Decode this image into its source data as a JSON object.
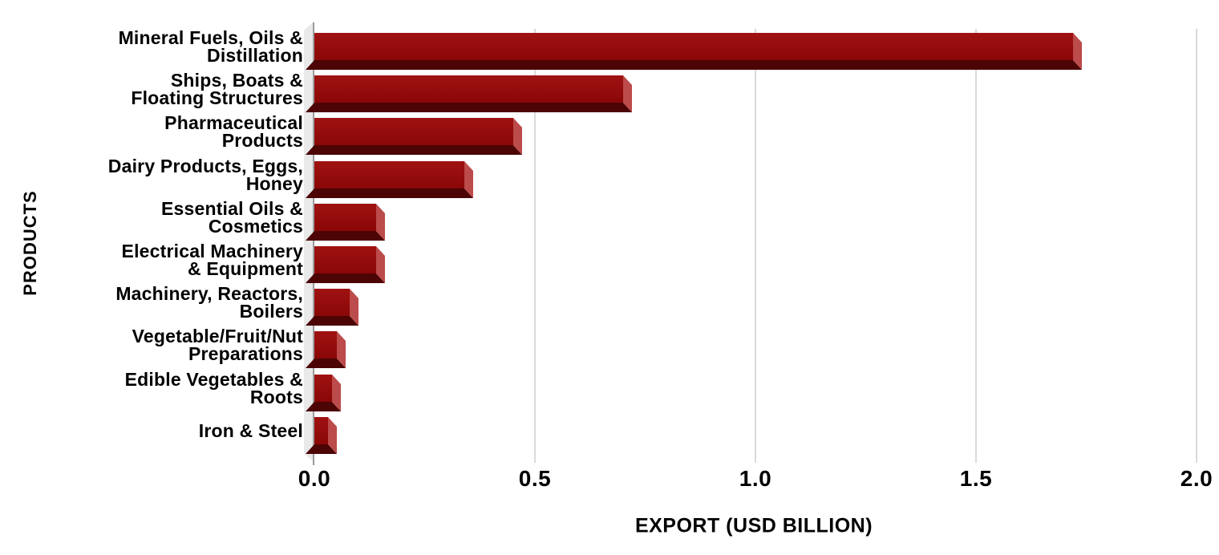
{
  "chart_data": {
    "type": "bar",
    "orientation": "horizontal",
    "xlabel": "EXPORT (USD BILLION)",
    "ylabel": "PRODUCTS",
    "xlim": [
      0,
      2.0
    ],
    "grid": "vertical",
    "legend": "none",
    "x_ticks": [
      {
        "value": 0,
        "label": "0.0"
      },
      {
        "value": 0.5,
        "label": "0.5"
      },
      {
        "value": 1.0,
        "label": "1.0"
      },
      {
        "value": 1.5,
        "label": "1.5"
      },
      {
        "value": 2.0,
        "label": "2.0"
      }
    ],
    "categories": [
      "Mineral Fuels, Oils &\nDistillation",
      "Ships, Boats &\nFloating Structures",
      "Pharmaceutical\nProducts",
      "Dairy Products, Eggs,\nHoney",
      "Essential Oils &\nCosmetics",
      "Electrical Machinery\n& Equipment",
      "Machinery, Reactors,\nBoilers",
      "Vegetable/Fruit/Nut\nPreparations",
      "Edible Vegetables &\nRoots",
      "Iron & Steel"
    ],
    "values": [
      1.72,
      0.7,
      0.45,
      0.34,
      0.14,
      0.14,
      0.08,
      0.05,
      0.04,
      0.03
    ],
    "unit": "USD Billion",
    "colors": {
      "bar_front_top": "#A01212",
      "bar_front_bottom": "#8A0707",
      "bar_side": "#BC4B4B",
      "bar_bottom_face": "#4C0404",
      "wall": "#E9E9E9",
      "gridline": "#DADADA",
      "axis_line": "#9C9C9C",
      "text": "#000000",
      "background": "#FFFFFF"
    }
  }
}
